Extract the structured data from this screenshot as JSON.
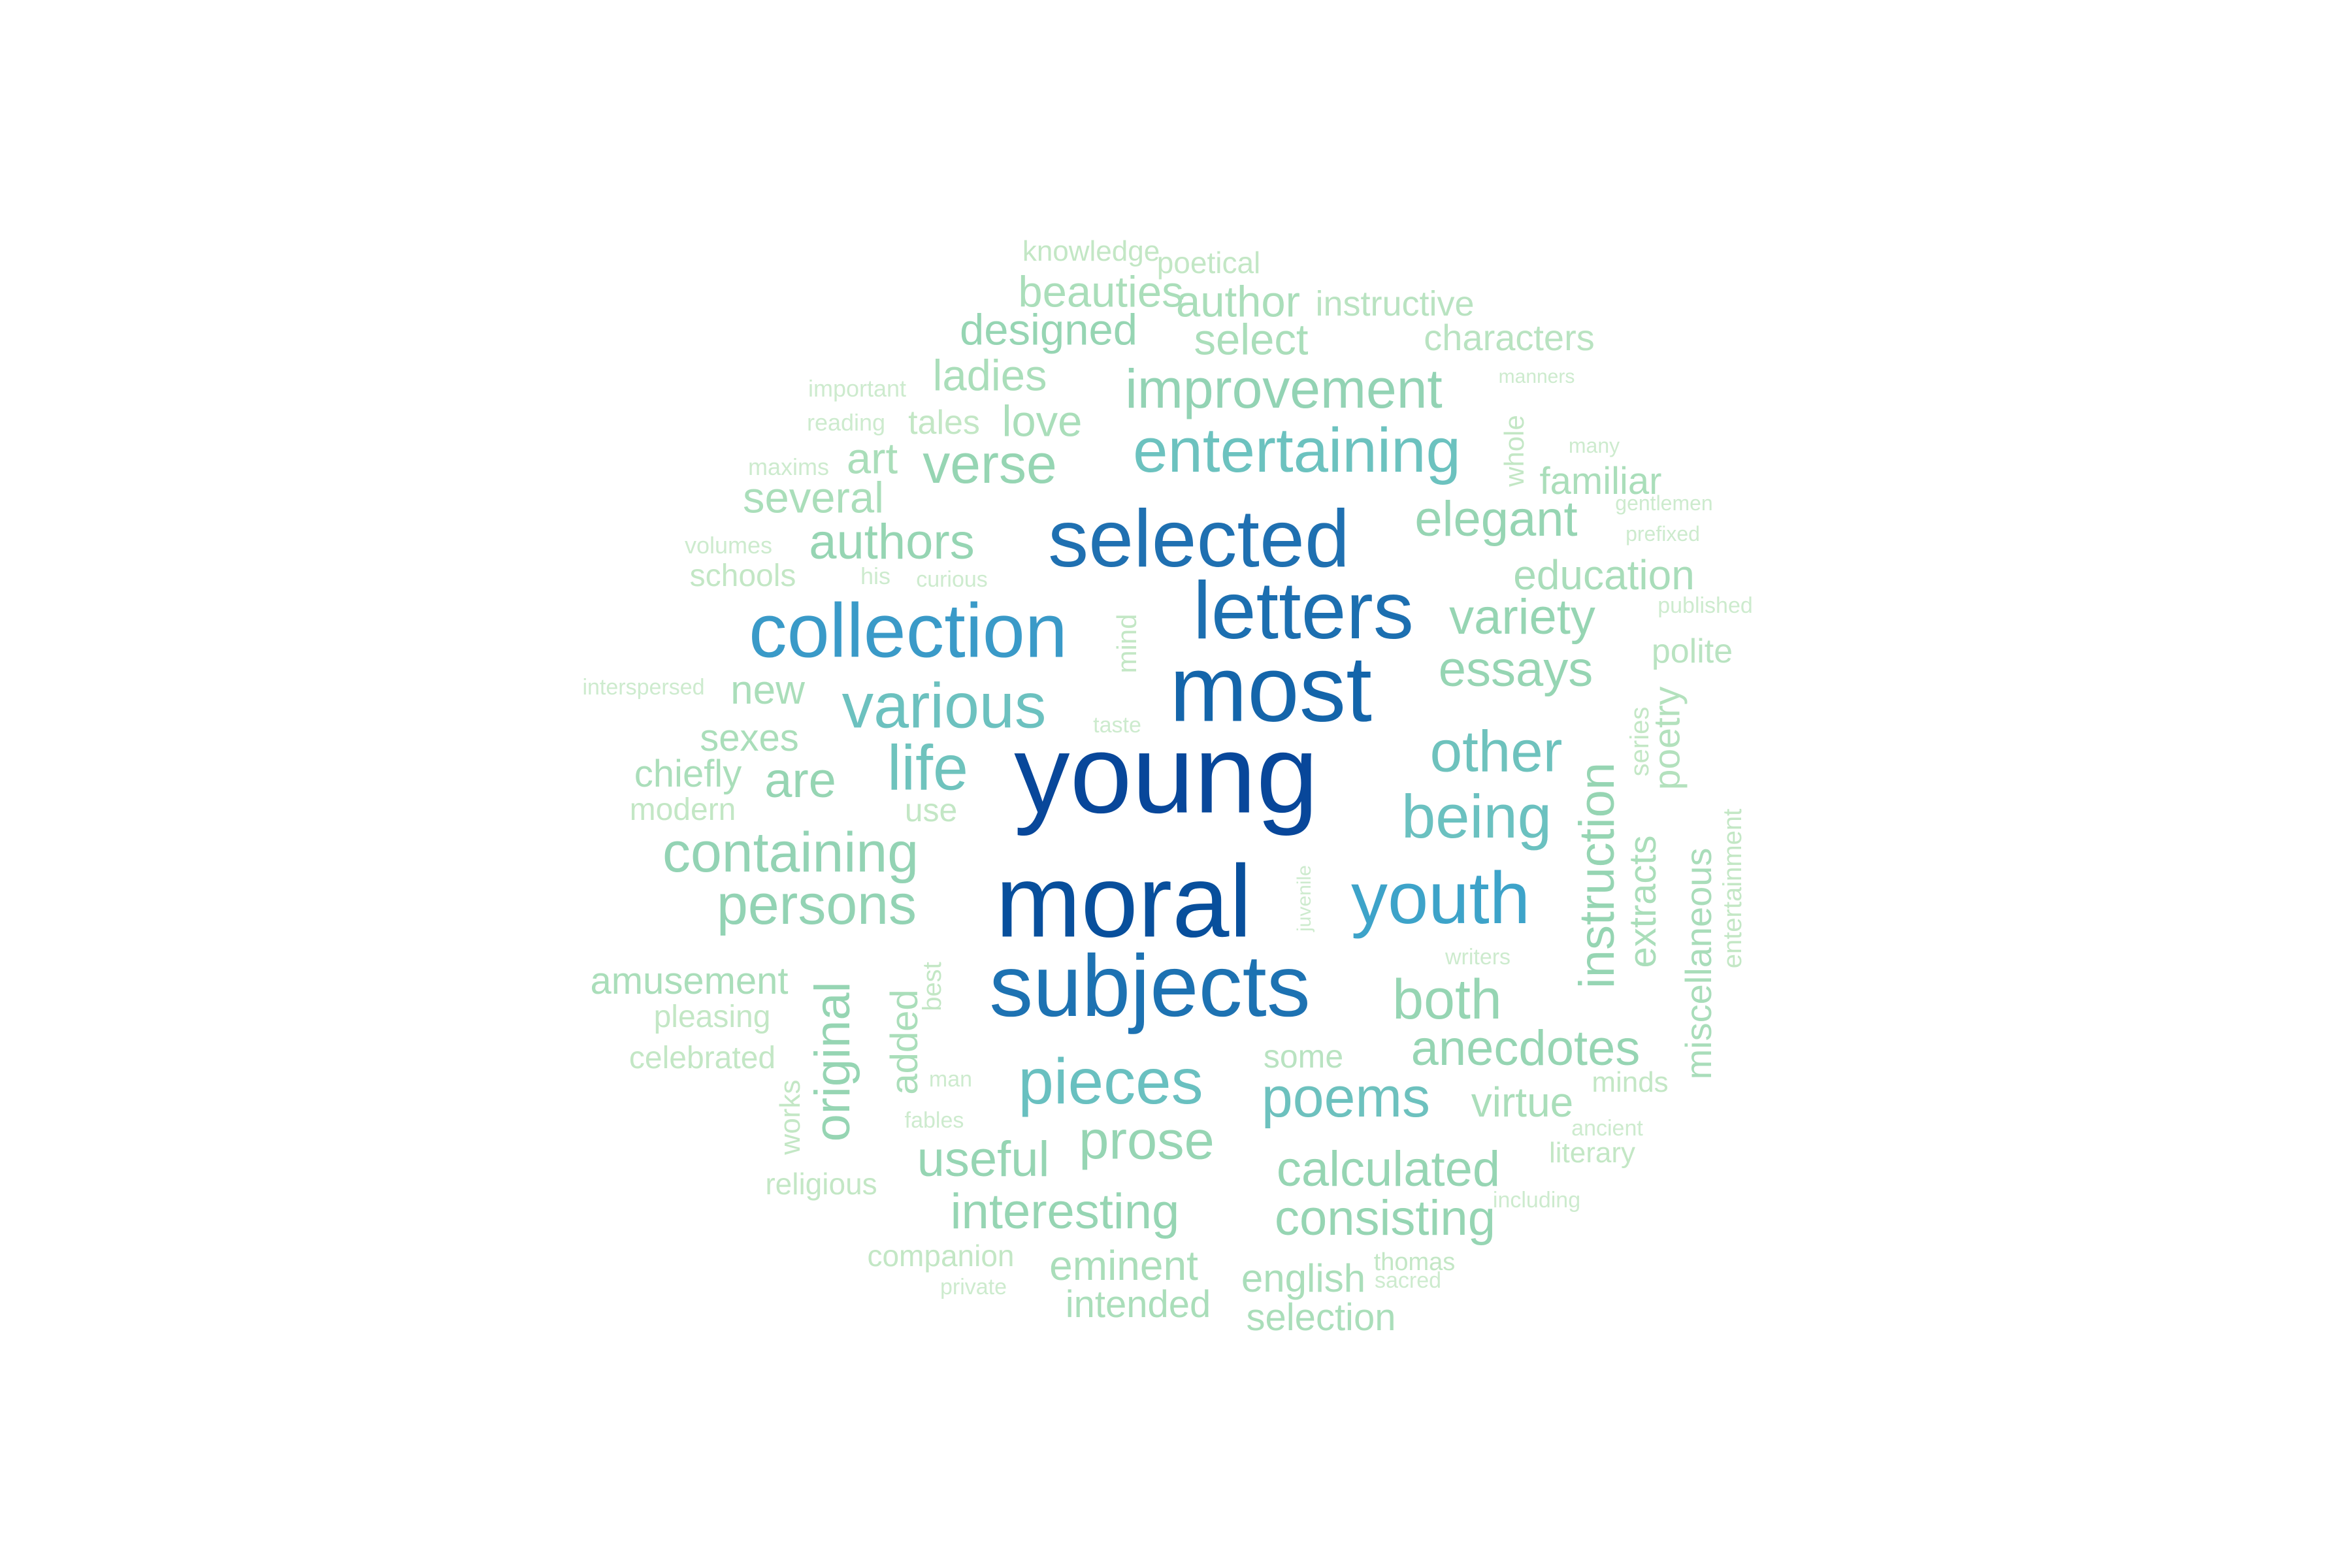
{
  "word_cloud": {
    "words": [
      {
        "text": "young",
        "color": "#08479a"
      },
      {
        "text": "moral",
        "color": "#084f9c"
      },
      {
        "text": "most",
        "color": "#1465aa"
      },
      {
        "text": "subjects",
        "color": "#1d72b2"
      },
      {
        "text": "letters",
        "color": "#1c6fb0"
      },
      {
        "text": "selected",
        "color": "#1f70b1"
      },
      {
        "text": "collection",
        "color": "#3a9ac8"
      },
      {
        "text": "youth",
        "color": "#3da3c9"
      },
      {
        "text": "various",
        "color": "#6cc1bf"
      },
      {
        "text": "entertaining",
        "color": "#6cc2bf"
      },
      {
        "text": "pieces",
        "color": "#69c0c0"
      },
      {
        "text": "being",
        "color": "#6bc1c0"
      },
      {
        "text": "other",
        "color": "#6ec2bd"
      },
      {
        "text": "life",
        "color": "#6fc3bd"
      },
      {
        "text": "poems",
        "color": "#6dc1be"
      },
      {
        "text": "containing",
        "color": "#93d3b4"
      },
      {
        "text": "persons",
        "color": "#93d3b4"
      },
      {
        "text": "improvement",
        "color": "#93d3b4"
      },
      {
        "text": "verse",
        "color": "#96d5b3"
      },
      {
        "text": "authors",
        "color": "#96d5b3"
      },
      {
        "text": "elegant",
        "color": "#96d5b3"
      },
      {
        "text": "essays",
        "color": "#96d5b3"
      },
      {
        "text": "variety",
        "color": "#96d5b3"
      },
      {
        "text": "both",
        "color": "#96d5b3"
      },
      {
        "text": "anecdotes",
        "color": "#96d5b3"
      },
      {
        "text": "instruction",
        "color": "#96d5b3"
      },
      {
        "text": "prose",
        "color": "#96d5b3"
      },
      {
        "text": "calculated",
        "color": "#96d5b3"
      },
      {
        "text": "consisting",
        "color": "#96d5b3"
      },
      {
        "text": "interesting",
        "color": "#96d5b3"
      },
      {
        "text": "useful",
        "color": "#96d5b3"
      },
      {
        "text": "original",
        "color": "#96d5b3"
      },
      {
        "text": "are",
        "color": "#96d5b3"
      },
      {
        "text": "designed",
        "color": "#96d5b3"
      },
      {
        "text": "education",
        "color": "#a9ddba"
      },
      {
        "text": "extracts",
        "color": "#aadeba"
      },
      {
        "text": "miscellaneous",
        "color": "#a9ddba"
      },
      {
        "text": "poetry",
        "color": "#b3e1bd"
      },
      {
        "text": "love",
        "color": "#aadeba"
      },
      {
        "text": "select",
        "color": "#aadeba"
      },
      {
        "text": "author",
        "color": "#aadeba"
      },
      {
        "text": "ladies",
        "color": "#aadeba"
      },
      {
        "text": "beauties",
        "color": "#aadeba"
      },
      {
        "text": "art",
        "color": "#aadeba"
      },
      {
        "text": "several",
        "color": "#aadeba"
      },
      {
        "text": "familiar",
        "color": "#aadeba"
      },
      {
        "text": "new",
        "color": "#aadeba"
      },
      {
        "text": "sexes",
        "color": "#aadeba"
      },
      {
        "text": "chiefly",
        "color": "#aadeba"
      },
      {
        "text": "amusement",
        "color": "#aadeba"
      },
      {
        "text": "added",
        "color": "#aadeba"
      },
      {
        "text": "virtue",
        "color": "#aadeba"
      },
      {
        "text": "eminent",
        "color": "#aadeba"
      },
      {
        "text": "english",
        "color": "#aadeba"
      },
      {
        "text": "intended",
        "color": "#aadeba"
      },
      {
        "text": "selection",
        "color": "#aadeba"
      },
      {
        "text": "some",
        "color": "#b9e3c1"
      },
      {
        "text": "characters",
        "color": "#b9e3c1"
      },
      {
        "text": "instructive",
        "color": "#b9e3c1"
      },
      {
        "text": "polite",
        "color": "#b9e3c1"
      },
      {
        "text": "tales",
        "color": "#c3e7c5"
      },
      {
        "text": "use",
        "color": "#c3e7c5"
      },
      {
        "text": "pleasing",
        "color": "#c3e7c5"
      },
      {
        "text": "celebrated",
        "color": "#c3e7c5"
      },
      {
        "text": "modern",
        "color": "#c3e7c5"
      },
      {
        "text": "schools",
        "color": "#c3e7c5"
      },
      {
        "text": "poetical",
        "color": "#c3e7c5"
      },
      {
        "text": "knowledge",
        "color": "#c3e7c5"
      },
      {
        "text": "works",
        "color": "#c3e7c5"
      },
      {
        "text": "religious",
        "color": "#c3e7c5"
      },
      {
        "text": "companion",
        "color": "#c3e7c5"
      },
      {
        "text": "minds",
        "color": "#c3e7c5"
      },
      {
        "text": "literary",
        "color": "#c3e7c5"
      },
      {
        "text": "thomas",
        "color": "#c3e7c5"
      },
      {
        "text": "entertainment",
        "color": "#c3e7c5"
      },
      {
        "text": "series",
        "color": "#c3e7c5"
      },
      {
        "text": "whole",
        "color": "#c3e7c5"
      },
      {
        "text": "mind",
        "color": "#c3e7c5"
      },
      {
        "text": "best",
        "color": "#c3e7c5"
      },
      {
        "text": "important",
        "color": "#cdebce"
      },
      {
        "text": "reading",
        "color": "#cdebce"
      },
      {
        "text": "maxims",
        "color": "#cdebce"
      },
      {
        "text": "volumes",
        "color": "#cdebce"
      },
      {
        "text": "his",
        "color": "#cdebce"
      },
      {
        "text": "curious",
        "color": "#cdebce"
      },
      {
        "text": "interspersed",
        "color": "#cdebce"
      },
      {
        "text": "taste",
        "color": "#cdebce"
      },
      {
        "text": "juvenile",
        "color": "#cdebce"
      },
      {
        "text": "writers",
        "color": "#cdebce"
      },
      {
        "text": "man",
        "color": "#cdebce"
      },
      {
        "text": "fables",
        "color": "#cdebce"
      },
      {
        "text": "ancient",
        "color": "#cdebce"
      },
      {
        "text": "including",
        "color": "#cdebce"
      },
      {
        "text": "private",
        "color": "#cdebce"
      },
      {
        "text": "sacred",
        "color": "#cdebce"
      },
      {
        "text": "manners",
        "color": "#cdebce"
      },
      {
        "text": "many",
        "color": "#cdebce"
      },
      {
        "text": "gentlemen",
        "color": "#cdebce"
      },
      {
        "text": "prefixed",
        "color": "#cdebce"
      },
      {
        "text": "published",
        "color": "#cdebce"
      }
    ]
  }
}
